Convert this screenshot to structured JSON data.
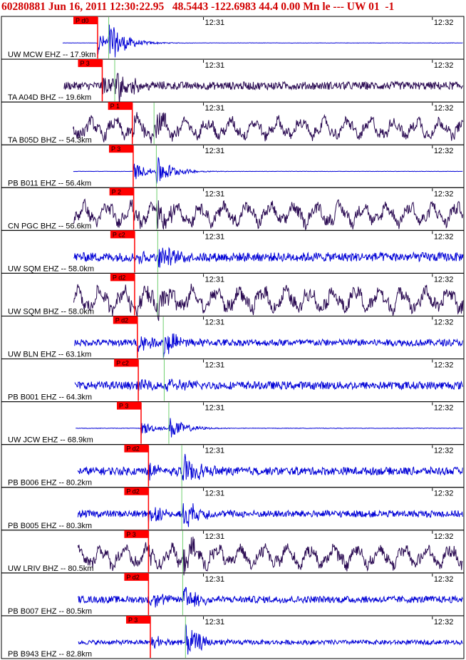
{
  "header": {
    "text": "60280881 Jun 16, 2011 12:30:22.95   48.5443 -122.6983 44.4 0.00 Mn le --- UW 01  -1"
  },
  "colors": {
    "header": "#d10000",
    "trace_ehz": "#0000d6",
    "trace_bhz": "#2a0a52",
    "pick_box": "#ff0000",
    "pick_line": "#ff0000",
    "s_line": "#6fcf6f",
    "frame": "#000000"
  },
  "chart_data": {
    "type": "line",
    "title": "60280881 Jun 16, 2011 12:30:22.95   48.5443 -122.6983 44.4 0.00 Mn le --- UW 01  -1",
    "time_ticks": [
      "12:31",
      "12:32"
    ],
    "traces": [
      {
        "label": "UW MCW EHZ -- 17.9km",
        "pick": "P d0",
        "channel": "EHZ",
        "p_time_frac": 0.208,
        "s_time_frac": 0.232,
        "amplitude": 0.9,
        "noise": 0.04,
        "wave": "impulsive"
      },
      {
        "label": "TA A04D BHZ -- 19.6km",
        "pick": "P 3",
        "channel": "BHZ",
        "p_time_frac": 0.218,
        "s_time_frac": 0.245,
        "amplitude": 0.85,
        "noise": 0.35,
        "wave": "noisy"
      },
      {
        "label": "TA B05D BHZ -- 54.3km",
        "pick": "P 1",
        "channel": "BHZ",
        "p_time_frac": 0.283,
        "s_time_frac": 0.33,
        "amplitude": 0.95,
        "noise": 0.45,
        "wave": "longperiod"
      },
      {
        "label": "PB B011 EHZ -- 56.4km",
        "pick": "P 3",
        "channel": "EHZ",
        "p_time_frac": 0.285,
        "s_time_frac": 0.335,
        "amplitude": 0.75,
        "noise": 0.03,
        "wave": "impulsive"
      },
      {
        "label": "CN PGC BHZ -- 56.6km",
        "pick": "P 2",
        "channel": "BHZ",
        "p_time_frac": 0.286,
        "s_time_frac": 0.336,
        "amplitude": 0.9,
        "noise": 0.5,
        "wave": "longperiod"
      },
      {
        "label": "UW SQM EHZ -- 58.0km",
        "pick": "P c2",
        "channel": "EHZ",
        "p_time_frac": 0.288,
        "s_time_frac": 0.338,
        "amplitude": 0.55,
        "noise": 0.4,
        "wave": "noisy"
      },
      {
        "label": "UW SQM BHZ -- 58.0km",
        "pick": "P d2",
        "channel": "BHZ",
        "p_time_frac": 0.288,
        "s_time_frac": 0.338,
        "amplitude": 0.85,
        "noise": 0.55,
        "wave": "longperiod"
      },
      {
        "label": "UW BLN EHZ -- 63.1km",
        "pick": "P d2",
        "channel": "EHZ",
        "p_time_frac": 0.294,
        "s_time_frac": 0.35,
        "amplitude": 0.7,
        "noise": 0.3,
        "wave": "noisy"
      },
      {
        "label": "PB B001 EHZ -- 64.3km",
        "pick": "P c2",
        "channel": "EHZ",
        "p_time_frac": 0.296,
        "s_time_frac": 0.352,
        "amplitude": 0.45,
        "noise": 0.35,
        "wave": "noisy"
      },
      {
        "label": "UW JCW EHZ -- 68.9km",
        "pick": "P 3",
        "channel": "EHZ",
        "p_time_frac": 0.302,
        "s_time_frac": 0.362,
        "amplitude": 0.6,
        "noise": 0.06,
        "wave": "impulsive"
      },
      {
        "label": "PB B006 EHZ -- 80.2km",
        "pick": "P d2",
        "channel": "EHZ",
        "p_time_frac": 0.318,
        "s_time_frac": 0.39,
        "amplitude": 0.85,
        "noise": 0.35,
        "wave": "noisy"
      },
      {
        "label": "PB B005 EHZ -- 80.3km",
        "pick": "P d2",
        "channel": "EHZ",
        "p_time_frac": 0.318,
        "s_time_frac": 0.39,
        "amplitude": 0.8,
        "noise": 0.3,
        "wave": "noisy"
      },
      {
        "label": "UW LRIV BHZ -- 80.5km",
        "pick": "P 3",
        "channel": "BHZ",
        "p_time_frac": 0.318,
        "s_time_frac": 0.392,
        "amplitude": 0.85,
        "noise": 0.5,
        "wave": "longperiod"
      },
      {
        "label": "PB B007 EHZ -- 80.5km",
        "pick": "P d2",
        "channel": "EHZ",
        "p_time_frac": 0.318,
        "s_time_frac": 0.392,
        "amplitude": 0.8,
        "noise": 0.3,
        "wave": "noisy"
      },
      {
        "label": "PB B943 EHZ -- 82.8km",
        "pick": "P 3",
        "channel": "EHZ",
        "p_time_frac": 0.322,
        "s_time_frac": 0.398,
        "amplitude": 0.85,
        "noise": 0.2,
        "wave": "noisy"
      }
    ]
  }
}
